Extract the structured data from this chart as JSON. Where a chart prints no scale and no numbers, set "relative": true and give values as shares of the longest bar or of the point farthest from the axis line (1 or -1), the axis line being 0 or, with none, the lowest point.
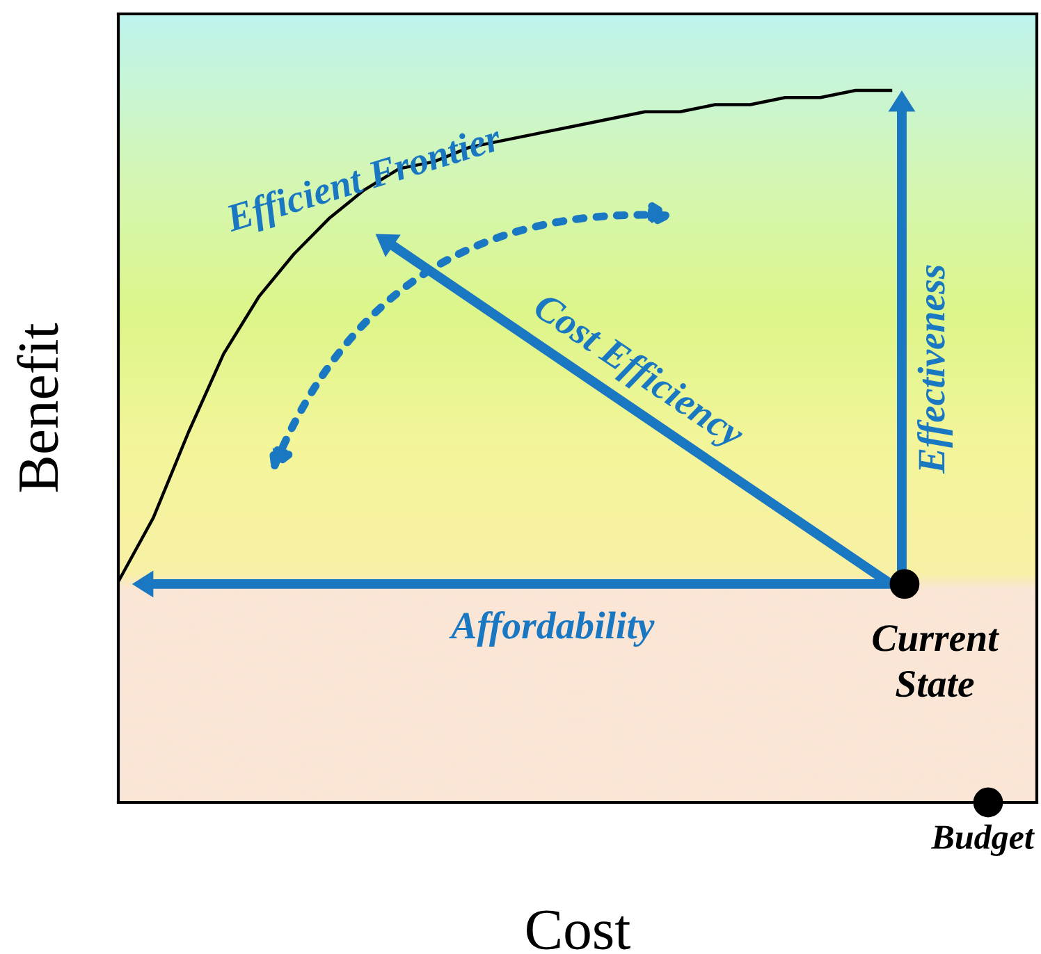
{
  "chart_data": {
    "type": "line",
    "relative": true,
    "xlabel": "Cost",
    "ylabel": "Benefit",
    "categories": [
      null,
      null,
      null,
      null,
      null,
      null,
      null,
      null,
      null,
      null,
      null,
      null,
      null,
      null,
      null,
      null,
      null,
      null,
      null,
      null,
      null,
      null,
      null
    ],
    "series": [
      {
        "color": "#000000",
        "values": [
          0.31,
          0.4,
          0.52,
          0.63,
          0.71,
          0.77,
          0.82,
          0.86,
          0.89,
          0.9,
          0.92,
          0.93,
          0.94,
          0.95,
          0.96,
          0.97,
          0.97,
          0.98,
          0.98,
          0.99,
          0.99,
          1.0,
          1.0
        ]
      }
    ],
    "annotations": [
      "Efficient Frontier",
      "Cost Efficiency",
      "Effectiveness",
      "Affordability",
      "Current\nState",
      "Budget"
    ],
    "grid": false,
    "legend": false,
    "marker": "none",
    "line_style": "solid"
  }
}
